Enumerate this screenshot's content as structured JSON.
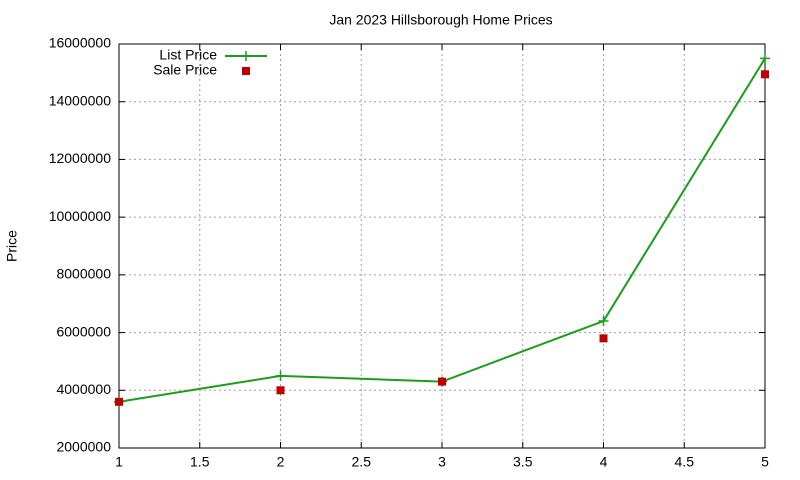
{
  "chart_data": {
    "type": "line",
    "title": "Jan 2023 Hillsborough Home Prices",
    "y_label": "Price",
    "x": [
      1,
      2,
      3,
      4,
      5
    ],
    "series": [
      {
        "name": "List Price",
        "color": "#1a9e1a",
        "style": "linespoints",
        "values": [
          3600000,
          4500000,
          4300000,
          6400000,
          15500000
        ]
      },
      {
        "name": "Sale Price",
        "color": "#c00000",
        "style": "points",
        "values": [
          3600000,
          4000000,
          4300000,
          5800000,
          14950000
        ]
      }
    ],
    "xlim": [
      1,
      5
    ],
    "xticks": [
      1,
      1.5,
      2,
      2.5,
      3,
      3.5,
      4,
      4.5,
      5
    ],
    "ylim": [
      2000000,
      16000000
    ],
    "yticks": [
      2000000,
      4000000,
      6000000,
      8000000,
      10000000,
      12000000,
      14000000,
      16000000
    ],
    "grid": true,
    "legend": "top-left"
  }
}
